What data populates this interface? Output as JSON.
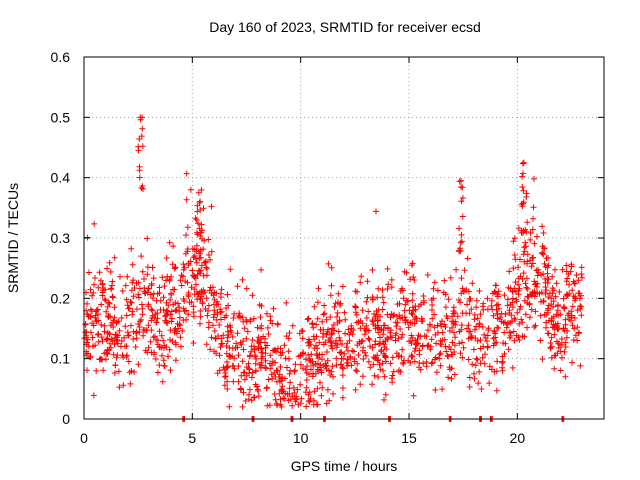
{
  "chart_data": {
    "type": "scatter",
    "title": "Day 160 of 2023, SRMTID for receiver ecsd",
    "xlabel": "GPS time / hours",
    "ylabel": "SRMTID / TECUs",
    "xlim": [
      0,
      24
    ],
    "ylim": [
      0,
      0.6
    ],
    "xticks": [
      0,
      5,
      10,
      15,
      20
    ],
    "xtick_labels": [
      "0",
      "5",
      "10",
      "15",
      "20"
    ],
    "yticks": [
      0,
      0.1,
      0.2,
      0.3,
      0.4,
      0.5,
      0.6
    ],
    "ytick_labels": [
      "0",
      "0.1",
      "0.2",
      "0.3",
      "0.4",
      "0.5",
      "0.6"
    ],
    "grid": true,
    "marker": "+",
    "color": "#ff0000",
    "series": [
      {
        "name": "SRMTID",
        "description": "median trend of scattered points (approximate)",
        "x": [
          0.0,
          0.5,
          1.0,
          1.5,
          2.0,
          2.5,
          3.0,
          3.5,
          4.0,
          4.5,
          5.0,
          5.5,
          6.0,
          6.5,
          7.0,
          7.5,
          8.0,
          8.5,
          9.0,
          9.5,
          10.0,
          10.5,
          11.0,
          11.5,
          12.0,
          12.5,
          13.0,
          13.5,
          14.0,
          14.5,
          15.0,
          15.5,
          16.0,
          16.5,
          17.0,
          17.5,
          18.0,
          18.5,
          19.0,
          19.5,
          20.0,
          20.5,
          21.0,
          21.5,
          22.0,
          22.5,
          23.0
        ],
        "y": [
          0.17,
          0.16,
          0.15,
          0.14,
          0.15,
          0.19,
          0.18,
          0.16,
          0.17,
          0.2,
          0.23,
          0.25,
          0.17,
          0.12,
          0.11,
          0.1,
          0.1,
          0.11,
          0.08,
          0.07,
          0.08,
          0.1,
          0.11,
          0.12,
          0.12,
          0.13,
          0.13,
          0.14,
          0.14,
          0.13,
          0.15,
          0.16,
          0.15,
          0.13,
          0.15,
          0.17,
          0.14,
          0.13,
          0.15,
          0.16,
          0.2,
          0.25,
          0.23,
          0.18,
          0.15,
          0.19,
          0.2
        ]
      }
    ],
    "annotations": [
      {
        "x": 2.6,
        "y": 0.5,
        "type": "peak"
      },
      {
        "x": 5.3,
        "y": 0.375,
        "type": "peak"
      },
      {
        "x": 17.4,
        "y": 0.395,
        "type": "peak"
      },
      {
        "x": 20.3,
        "y": 0.425,
        "type": "peak"
      }
    ],
    "zero_markers_x": [
      4.6,
      7.8,
      9.6,
      11.1,
      14.1,
      16.9,
      18.3,
      18.8,
      22.1
    ]
  }
}
